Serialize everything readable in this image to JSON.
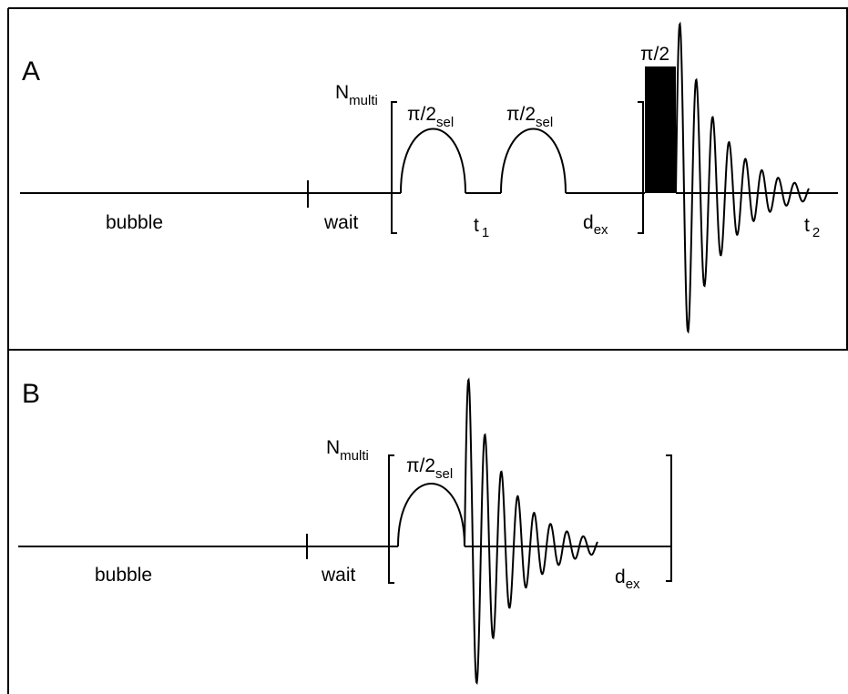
{
  "panels": [
    {
      "letter": "A",
      "bubble": "bubble",
      "wait": "wait",
      "n_base": "N",
      "n_sub": "multi",
      "sel_pulse_base": "π/2",
      "sel_pulse_sub": "sel",
      "t1_base": "t",
      "t1_sub": "1",
      "dex_base": "d",
      "dex_sub": "ex",
      "hard_pulse": "π/2",
      "t2_base": "t",
      "t2_sub": "2"
    },
    {
      "letter": "B",
      "bubble": "bubble",
      "wait": "wait",
      "n_base": "N",
      "n_sub": "multi",
      "sel_pulse_base": "π/2",
      "sel_pulse_sub": "sel",
      "dex_base": "d",
      "dex_sub": "ex"
    }
  ]
}
